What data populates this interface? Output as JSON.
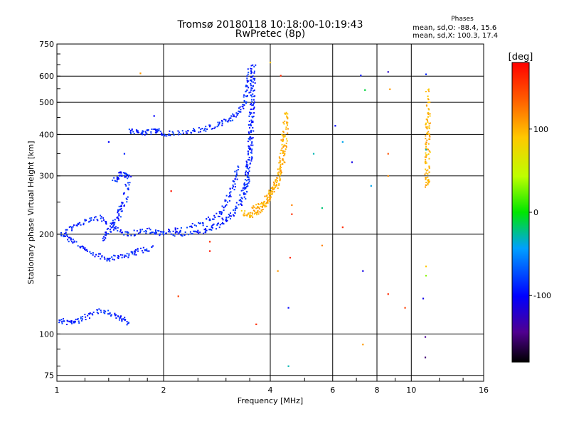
{
  "chart_data": {
    "type": "scatter",
    "title": "Tromsø 20180118 10:18:00-10:19:43",
    "subtitle": "RwPretec (8p)",
    "xlabel": "Frequency [MHz]",
    "ylabel": "Stationary phase Virtual Height [km]",
    "x_scale": "log",
    "y_scale": "log",
    "xlim": [
      1,
      16
    ],
    "ylim": [
      72,
      750
    ],
    "x_ticks": [
      1,
      2,
      4,
      6,
      8,
      10,
      16
    ],
    "x_tick_labels": [
      "1",
      "2",
      "4",
      "6",
      "8",
      "10",
      "16"
    ],
    "y_ticks": [
      75,
      100,
      200,
      300,
      400,
      500,
      600,
      750
    ],
    "y_tick_labels": [
      "75",
      "100",
      "200",
      "300",
      "400",
      "500",
      "600",
      "750"
    ],
    "grid": true,
    "phases_legend": {
      "title": "Phases",
      "line_o": "mean, sd,O: -88.4, 15.6",
      "line_x": "mean, sd,X: 100.3, 17.4"
    },
    "colorbar": {
      "label": "[deg]",
      "range": [
        -180,
        180
      ],
      "ticks": [
        100,
        0,
        -100
      ],
      "tick_labels": [
        "100",
        "0",
        "-100"
      ]
    },
    "series": [
      {
        "name": "O",
        "phase_mean": -88.4,
        "traces": [
          {
            "points": [
              [
                1.02,
                110
              ],
              [
                1.1,
                108
              ],
              [
                1.2,
                112
              ],
              [
                1.35,
                118
              ],
              [
                1.5,
                112
              ],
              [
                1.6,
                108
              ]
            ]
          },
          {
            "points": [
              [
                1.02,
                200
              ],
              [
                1.12,
                190
              ],
              [
                1.25,
                175
              ],
              [
                1.4,
                168
              ],
              [
                1.55,
                172
              ],
              [
                1.7,
                178
              ],
              [
                1.85,
                182
              ]
            ]
          },
          {
            "points": [
              [
                1.05,
                200
              ],
              [
                1.15,
                215
              ],
              [
                1.3,
                225
              ],
              [
                1.45,
                210
              ],
              [
                1.6,
                200
              ],
              [
                1.8,
                205
              ],
              [
                2.0,
                201
              ]
            ]
          },
          {
            "points": [
              [
                1.45,
                290
              ],
              [
                1.52,
                305
              ],
              [
                1.6,
                300
              ],
              [
                1.55,
                250
              ],
              [
                1.5,
                230
              ],
              [
                1.42,
                210
              ],
              [
                1.35,
                190
              ]
            ]
          },
          {
            "points": [
              [
                1.6,
                410
              ],
              [
                1.75,
                405
              ],
              [
                1.9,
                410
              ],
              [
                2.0,
                402
              ]
            ]
          },
          {
            "points": [
              [
                2.0,
                401
              ],
              [
                2.3,
                405
              ],
              [
                2.6,
                415
              ],
              [
                2.9,
                430
              ],
              [
                3.15,
                450
              ],
              [
                3.35,
                480
              ],
              [
                3.45,
                540
              ],
              [
                3.52,
                650
              ]
            ]
          },
          {
            "points": [
              [
                2.0,
                200
              ],
              [
                2.3,
                201
              ],
              [
                2.6,
                205
              ],
              [
                2.85,
                213
              ],
              [
                3.1,
                228
              ],
              [
                3.3,
                250
              ],
              [
                3.42,
                285
              ],
              [
                3.5,
                340
              ],
              [
                3.55,
                450
              ],
              [
                3.57,
                560
              ],
              [
                3.58,
                650
              ]
            ]
          },
          {
            "points": [
              [
                1.9,
                201
              ],
              [
                2.4,
                210
              ],
              [
                2.8,
                225
              ],
              [
                3.0,
                245
              ],
              [
                3.15,
                280
              ],
              [
                3.25,
                320
              ]
            ]
          },
          {
            "points": [
              [
                3.4,
                260
              ],
              [
                3.45,
                300
              ],
              [
                3.5,
                350
              ],
              [
                3.52,
                400
              ],
              [
                3.55,
                480
              ],
              [
                3.58,
                620
              ]
            ]
          }
        ]
      },
      {
        "name": "X",
        "phase_mean": 100.3,
        "traces": [
          {
            "points": [
              [
                3.35,
                232
              ],
              [
                3.55,
                228
              ],
              [
                3.75,
                236
              ],
              [
                3.95,
                252
              ],
              [
                4.15,
                278
              ],
              [
                4.3,
                318
              ],
              [
                4.38,
                370
              ],
              [
                4.42,
                420
              ],
              [
                4.45,
                470
              ]
            ]
          },
          {
            "points": [
              [
                3.6,
                240
              ],
              [
                3.8,
                245
              ],
              [
                4.0,
                265
              ],
              [
                4.2,
                290
              ],
              [
                4.3,
                340
              ],
              [
                4.35,
                400
              ]
            ]
          },
          {
            "points": [
              [
                11.1,
                280
              ],
              [
                11.1,
                300
              ],
              [
                11.12,
                340
              ],
              [
                11.12,
                380
              ],
              [
                11.15,
                420
              ],
              [
                11.15,
                460
              ],
              [
                11.15,
                560
              ]
            ]
          }
        ]
      }
    ],
    "scatter_points": [
      {
        "x": 1.72,
        "y": 612,
        "phase": 110
      },
      {
        "x": 1.88,
        "y": 455,
        "phase": -100
      },
      {
        "x": 4.0,
        "y": 660,
        "phase": 90
      },
      {
        "x": 4.28,
        "y": 602,
        "phase": 160
      },
      {
        "x": 6.1,
        "y": 425,
        "phase": -100
      },
      {
        "x": 7.2,
        "y": 603,
        "phase": -95
      },
      {
        "x": 7.4,
        "y": 545,
        "phase": -10
      },
      {
        "x": 8.6,
        "y": 618,
        "phase": -120
      },
      {
        "x": 8.7,
        "y": 548,
        "phase": 110
      },
      {
        "x": 11.0,
        "y": 608,
        "phase": -90
      },
      {
        "x": 11.0,
        "y": 360,
        "phase": -30
      },
      {
        "x": 11.0,
        "y": 160,
        "phase": 90
      },
      {
        "x": 11.0,
        "y": 150,
        "phase": 30
      },
      {
        "x": 10.8,
        "y": 128,
        "phase": -110
      },
      {
        "x": 10.95,
        "y": 98,
        "phase": -140
      },
      {
        "x": 10.95,
        "y": 85,
        "phase": -150
      },
      {
        "x": 8.6,
        "y": 350,
        "phase": 140
      },
      {
        "x": 8.6,
        "y": 300,
        "phase": 115
      },
      {
        "x": 8.6,
        "y": 132,
        "phase": 160
      },
      {
        "x": 9.6,
        "y": 120,
        "phase": 150
      },
      {
        "x": 7.3,
        "y": 93,
        "phase": 110
      },
      {
        "x": 7.3,
        "y": 155,
        "phase": -110
      },
      {
        "x": 6.4,
        "y": 380,
        "phase": -40
      },
      {
        "x": 6.4,
        "y": 210,
        "phase": 160
      },
      {
        "x": 5.3,
        "y": 350,
        "phase": -30
      },
      {
        "x": 5.6,
        "y": 240,
        "phase": -20
      },
      {
        "x": 5.6,
        "y": 185,
        "phase": 120
      },
      {
        "x": 4.6,
        "y": 245,
        "phase": 120
      },
      {
        "x": 4.6,
        "y": 230,
        "phase": 160
      },
      {
        "x": 4.55,
        "y": 170,
        "phase": 160
      },
      {
        "x": 4.5,
        "y": 120,
        "phase": -100
      },
      {
        "x": 4.5,
        "y": 80,
        "phase": -30
      },
      {
        "x": 4.2,
        "y": 155,
        "phase": 110
      },
      {
        "x": 3.65,
        "y": 107,
        "phase": 160
      },
      {
        "x": 2.7,
        "y": 190,
        "phase": 160
      },
      {
        "x": 2.7,
        "y": 178,
        "phase": 170
      },
      {
        "x": 2.2,
        "y": 130,
        "phase": 150
      },
      {
        "x": 2.1,
        "y": 270,
        "phase": 170
      },
      {
        "x": 7.7,
        "y": 280,
        "phase": -40
      },
      {
        "x": 6.8,
        "y": 330,
        "phase": -110
      },
      {
        "x": 1.55,
        "y": 350,
        "phase": -90
      },
      {
        "x": 1.4,
        "y": 380,
        "phase": -100
      }
    ]
  }
}
